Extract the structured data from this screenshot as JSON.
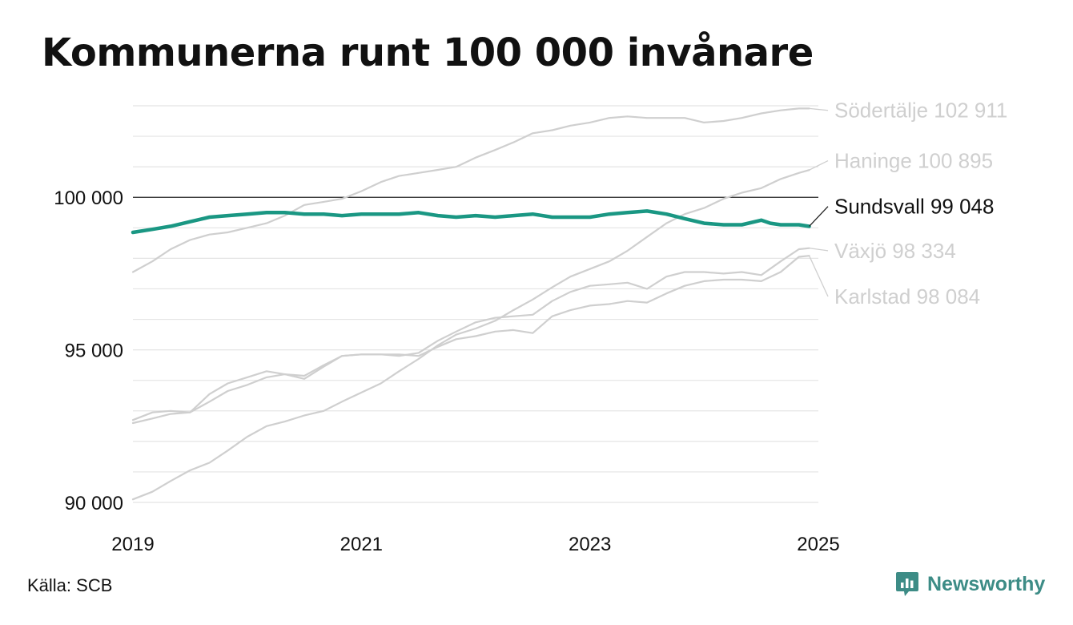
{
  "title": "Kommunerna runt 100 000 invånare",
  "source": "Källa: SCB",
  "brand": "Newsworthy",
  "colors": {
    "highlight": "#1a9783",
    "muted": "#cfcfcf",
    "grid": "#e4e4e4",
    "reference": "#222222",
    "brand": "#3d8c86"
  },
  "chart_data": {
    "type": "line",
    "title": "Kommunerna runt 100 000 invånare",
    "xlabel": "",
    "ylabel": "",
    "xlim": [
      2019.0,
      2025.0
    ],
    "ylim": [
      90000,
      103000
    ],
    "x_ticks": [
      {
        "value": 2019,
        "label": "2019"
      },
      {
        "value": 2021,
        "label": "2021"
      },
      {
        "value": 2023,
        "label": "2023"
      },
      {
        "value": 2025,
        "label": "2025"
      }
    ],
    "y_ticks": [
      {
        "value": 90000,
        "label": "90 000"
      },
      {
        "value": 95000,
        "label": "95 000"
      },
      {
        "value": 100000,
        "label": "100 000"
      }
    ],
    "grid_values": [
      90000,
      91000,
      92000,
      93000,
      94000,
      95000,
      96000,
      97000,
      98000,
      99000,
      101000,
      102000,
      103000
    ],
    "reference_line": 100000,
    "grid": true,
    "legend": "direct labels at line ends (right)",
    "series": [
      {
        "name": "Södertälje",
        "value_label": "102 911",
        "label_text": "Södertälje 102 911",
        "highlight": false,
        "label_y": 102850,
        "x": [
          2019.0,
          2019.17,
          2019.33,
          2019.5,
          2019.67,
          2019.83,
          2020.0,
          2020.17,
          2020.33,
          2020.5,
          2020.67,
          2020.83,
          2021.0,
          2021.17,
          2021.33,
          2021.5,
          2021.67,
          2021.83,
          2022.0,
          2022.17,
          2022.33,
          2022.5,
          2022.67,
          2022.83,
          2023.0,
          2023.17,
          2023.33,
          2023.5,
          2023.67,
          2023.83,
          2024.0,
          2024.17,
          2024.33,
          2024.5,
          2024.67,
          2024.83,
          2024.92
        ],
        "y": [
          97550,
          97900,
          98300,
          98600,
          98780,
          98850,
          99000,
          99150,
          99400,
          99750,
          99850,
          99950,
          100200,
          100500,
          100700,
          100800,
          100900,
          101000,
          101300,
          101550,
          101800,
          102100,
          102200,
          102350,
          102450,
          102600,
          102650,
          102600,
          102600,
          102600,
          102450,
          102500,
          102600,
          102750,
          102850,
          102911,
          102911
        ]
      },
      {
        "name": "Haninge",
        "value_label": "100 895",
        "label_text": "Haninge 100 895",
        "highlight": false,
        "label_y": 101200,
        "x": [
          2019.0,
          2019.17,
          2019.33,
          2019.5,
          2019.67,
          2019.83,
          2020.0,
          2020.17,
          2020.33,
          2020.5,
          2020.67,
          2020.83,
          2021.0,
          2021.17,
          2021.33,
          2021.5,
          2021.67,
          2021.83,
          2022.0,
          2022.17,
          2022.33,
          2022.5,
          2022.67,
          2022.83,
          2023.0,
          2023.17,
          2023.33,
          2023.5,
          2023.67,
          2023.83,
          2024.0,
          2024.17,
          2024.33,
          2024.5,
          2024.67,
          2024.83,
          2024.92
        ],
        "y": [
          90100,
          90350,
          90700,
          91050,
          91300,
          91700,
          92150,
          92500,
          92650,
          92850,
          93000,
          93300,
          93600,
          93900,
          94300,
          94700,
          95150,
          95500,
          95700,
          95950,
          96300,
          96650,
          97050,
          97400,
          97650,
          97900,
          98250,
          98700,
          99150,
          99450,
          99650,
          99950,
          100150,
          100300,
          100600,
          100800,
          100895
        ]
      },
      {
        "name": "Sundsvall",
        "value_label": "99 048",
        "label_text": "Sundsvall  99 048",
        "highlight": true,
        "label_y": 99700,
        "x": [
          2019.0,
          2019.17,
          2019.33,
          2019.5,
          2019.67,
          2019.83,
          2020.0,
          2020.17,
          2020.33,
          2020.5,
          2020.67,
          2020.83,
          2021.0,
          2021.17,
          2021.33,
          2021.5,
          2021.67,
          2021.83,
          2022.0,
          2022.17,
          2022.33,
          2022.5,
          2022.67,
          2022.83,
          2023.0,
          2023.17,
          2023.33,
          2023.5,
          2023.67,
          2023.83,
          2024.0,
          2024.17,
          2024.33,
          2024.5,
          2024.58,
          2024.67,
          2024.83,
          2024.92
        ],
        "y": [
          98850,
          98950,
          99050,
          99200,
          99350,
          99400,
          99450,
          99500,
          99500,
          99450,
          99450,
          99400,
          99450,
          99450,
          99450,
          99500,
          99400,
          99350,
          99400,
          99350,
          99400,
          99450,
          99350,
          99350,
          99350,
          99450,
          99500,
          99550,
          99450,
          99300,
          99150,
          99100,
          99100,
          99250,
          99150,
          99100,
          99100,
          99048
        ]
      },
      {
        "name": "Växjö",
        "value_label": "98 334",
        "label_text": "Växjö  98 334",
        "highlight": false,
        "label_y": 98250,
        "x": [
          2019.0,
          2019.17,
          2019.33,
          2019.5,
          2019.67,
          2019.83,
          2020.0,
          2020.17,
          2020.33,
          2020.5,
          2020.67,
          2020.83,
          2021.0,
          2021.17,
          2021.33,
          2021.5,
          2021.67,
          2021.83,
          2022.0,
          2022.17,
          2022.33,
          2022.5,
          2022.67,
          2022.83,
          2023.0,
          2023.17,
          2023.33,
          2023.5,
          2023.67,
          2023.83,
          2024.0,
          2024.17,
          2024.33,
          2024.5,
          2024.67,
          2024.83,
          2024.92
        ],
        "y": [
          92600,
          92750,
          92900,
          92950,
          93300,
          93650,
          93850,
          94100,
          94200,
          94150,
          94500,
          94800,
          94850,
          94850,
          94800,
          94900,
          95300,
          95600,
          95900,
          96050,
          96100,
          96150,
          96600,
          96900,
          97100,
          97150,
          97200,
          97000,
          97400,
          97550,
          97550,
          97500,
          97550,
          97450,
          97900,
          98300,
          98334
        ]
      },
      {
        "name": "Karlstad",
        "value_label": "98 084",
        "label_text": "Karlstad  98 084",
        "highlight": false,
        "label_y": 96750,
        "x": [
          2019.0,
          2019.17,
          2019.33,
          2019.5,
          2019.67,
          2019.83,
          2020.0,
          2020.17,
          2020.33,
          2020.5,
          2020.67,
          2020.83,
          2021.0,
          2021.17,
          2021.33,
          2021.5,
          2021.67,
          2021.83,
          2022.0,
          2022.17,
          2022.33,
          2022.5,
          2022.67,
          2022.83,
          2023.0,
          2023.17,
          2023.33,
          2023.5,
          2023.67,
          2023.83,
          2024.0,
          2024.17,
          2024.33,
          2024.5,
          2024.67,
          2024.83,
          2024.92
        ],
        "y": [
          92700,
          92950,
          93000,
          92950,
          93550,
          93900,
          94100,
          94300,
          94200,
          94050,
          94450,
          94800,
          94850,
          94850,
          94850,
          94800,
          95100,
          95350,
          95450,
          95600,
          95650,
          95550,
          96100,
          96300,
          96450,
          96500,
          96600,
          96550,
          96850,
          97100,
          97250,
          97300,
          97300,
          97250,
          97550,
          98050,
          98084
        ]
      }
    ]
  }
}
